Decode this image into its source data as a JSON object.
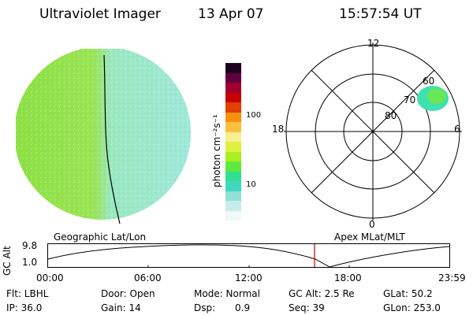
{
  "header": {
    "instrument": "Ultraviolet Imager",
    "date": "13 Apr 07",
    "time": "15:57:54 UT"
  },
  "colorbar": {
    "unit_label": "photon cm⁻²s⁻¹",
    "tick_labels": [
      "100",
      "10"
    ],
    "colors": [
      "#f0f8f8",
      "#c8ecec",
      "#90e0d8",
      "#40d8c0",
      "#30e090",
      "#60e840",
      "#a8f020",
      "#e0f040",
      "#f8f090",
      "#f8c040",
      "#f89010",
      "#e04000",
      "#c80000",
      "#a00030",
      "#600040",
      "#200020"
    ]
  },
  "globe_panel": {
    "fill_left": "#8ce040",
    "fill_right": "#a0e8d8"
  },
  "polar_panel": {
    "mlt_labels": [
      "12",
      "18",
      "6",
      "0"
    ],
    "mlat_labels": [
      "60",
      "70",
      "80"
    ],
    "oval_color": "#40e0b0"
  },
  "timeline": {
    "left_title": "Geographic Lat/Lon",
    "right_title": "Apex MLat/MLT",
    "y_axis_label": "GC Alt",
    "y_ticks": [
      "9.8",
      "1.0"
    ],
    "x_ticks": [
      "00:00",
      "06:00",
      "12:00",
      "18:00",
      "23:59"
    ],
    "current_time_marker_color": "#cc0000"
  },
  "info": {
    "flt": "Flt: LBHL",
    "ip": "IP: 36.0",
    "door": "Door: Open",
    "gain": "Gain: 14",
    "mode": "Mode: Normal",
    "dsp_label": "Dsp:",
    "dsp_value": "0.9",
    "gc_alt": "GC Alt: 2.5 Re",
    "seq": "Seq: 39",
    "glat": "GLat:  50.2",
    "glon": "GLon: 253.0"
  }
}
